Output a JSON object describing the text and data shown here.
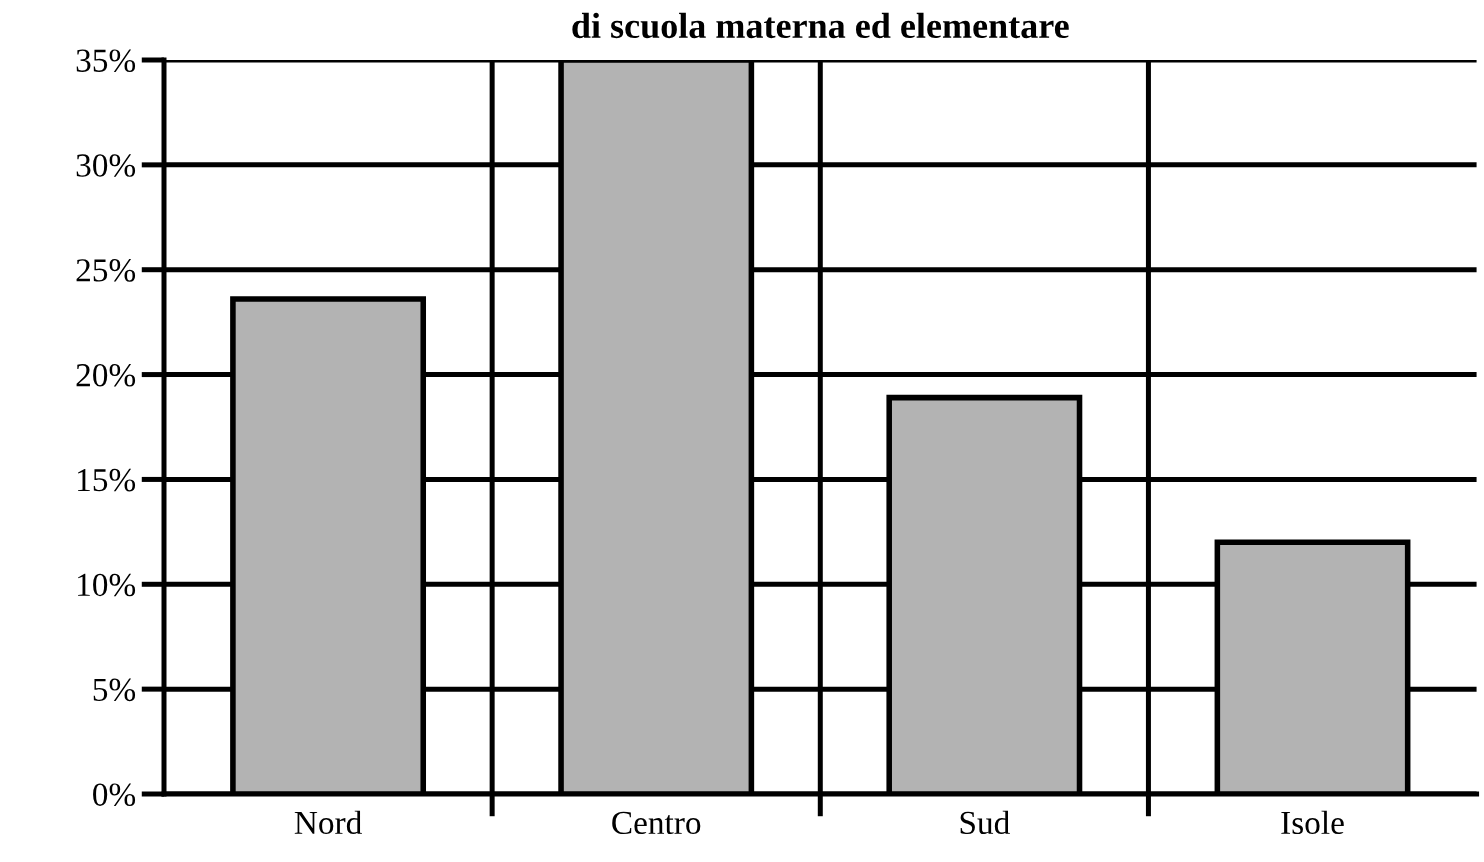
{
  "chart_data": {
    "type": "bar",
    "title": "di scuola materna ed elementare",
    "categories": [
      "Nord",
      "Centro",
      "Sud",
      "Isole"
    ],
    "values": [
      23.6,
      35,
      18.9,
      12.0
    ],
    "color": "#b3b3b3",
    "ylim": [
      0,
      35
    ],
    "yticks": [
      {
        "value": 0,
        "label": "0%"
      },
      {
        "value": 5,
        "label": "5%"
      },
      {
        "value": 10,
        "label": "10%"
      },
      {
        "value": 15,
        "label": "15%"
      },
      {
        "value": 20,
        "label": "20%"
      },
      {
        "value": 25,
        "label": "25%"
      },
      {
        "value": 30,
        "label": "30%"
      },
      {
        "value": 35,
        "label": "35%"
      }
    ],
    "grid": true
  }
}
